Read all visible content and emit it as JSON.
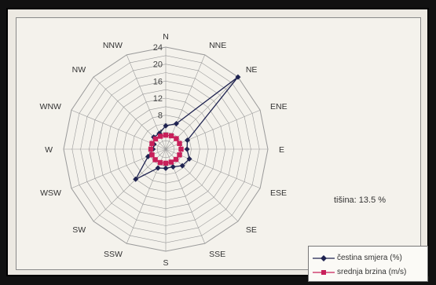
{
  "chart_data": {
    "type": "radar",
    "directions": [
      "N",
      "NNE",
      "NE",
      "ENE",
      "E",
      "ESE",
      "SE",
      "SSE",
      "S",
      "SSW",
      "SW",
      "WSW",
      "W",
      "WNW",
      "NW",
      "NNW"
    ],
    "radial_ticks": [
      4,
      8,
      12,
      16,
      20,
      24
    ],
    "rmax": 24,
    "series": [
      {
        "name": "čestina smjera (%)",
        "color": "#1f2350",
        "marker": "diamond",
        "values": [
          5.5,
          6.5,
          24,
          5.5,
          5,
          6,
          5.5,
          4.5,
          4.5,
          4.8,
          10,
          4.5,
          3,
          3,
          4,
          4
        ]
      },
      {
        "name": "srednja brzina (m/s)",
        "color": "#c8205a",
        "marker": "square",
        "values": [
          3.3,
          3.4,
          3.5,
          3.5,
          3.6,
          3.5,
          3.4,
          3.3,
          3.3,
          3.4,
          3.5,
          3.5,
          3.5,
          3.5,
          3.4,
          3.3
        ]
      }
    ],
    "annotation": "tišina: 13.5 %"
  }
}
